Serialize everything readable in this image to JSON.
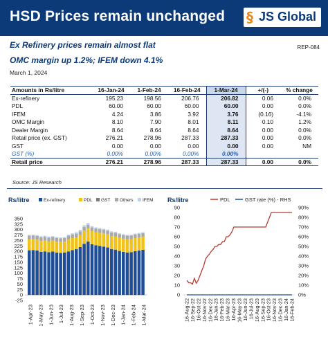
{
  "header": {
    "title": "HSD Prices remain unchanged",
    "logo_text": "JS Global",
    "logo_mark": "§"
  },
  "subtitle1": "Ex Refinery prices remain almost flat",
  "report_id": "REP-084",
  "subtitle2": "OMC margin up 1.2%; IFEM down 4.1%",
  "date": "March 1, 2024",
  "table": {
    "headers": [
      "Amounts in Rs/litre",
      "16-Jan-24",
      "1-Feb-24",
      "16-Feb-24",
      "1-Mar-24",
      "+/(-)",
      "% change"
    ],
    "rows": [
      [
        "Ex-refinery",
        "195.23",
        "198.56",
        "206.76",
        "206.82",
        "0.06",
        "0.0%"
      ],
      [
        "PDL",
        "60.00",
        "60.00",
        "60.00",
        "60.00",
        "0.00",
        "0.0%"
      ],
      [
        "IFEM",
        "4.24",
        "3.86",
        "3.92",
        "3.76",
        "(0.16)",
        "-4.1%"
      ],
      [
        "OMC Margin",
        "8.10",
        "7.90",
        "8.01",
        "8.11",
        "0.10",
        "1.2%"
      ],
      [
        "Dealer Margin",
        "8.64",
        "8.64",
        "8.64",
        "8.64",
        "0.00",
        "0.0%"
      ],
      [
        "Retail price (ex. GST)",
        "276.21",
        "278.96",
        "287.33",
        "287.33",
        "0.00",
        "0.0%"
      ],
      [
        "GST",
        "0.00",
        "0.00",
        "0.00",
        "0.00",
        "0.00",
        "NM"
      ]
    ],
    "gst_row": [
      "GST (%)",
      "0.00%",
      "0.00%",
      "0.00%",
      "0.00%",
      "",
      ""
    ],
    "total_row": [
      "Retail price",
      "276.21",
      "278.96",
      "287.33",
      "287.33",
      "0.00",
      "0.0%"
    ]
  },
  "source": "Source: JS Research",
  "colors": {
    "navy": "#0c3a78",
    "ex_refinery": "#1f4e96",
    "pdl": "#f2c21c",
    "gst": "#7a7a7a",
    "others": "#a9a9a9",
    "ifem": "#bcd2ea",
    "pdl_line": "#b83a2e",
    "gst_line": "#1f4e96"
  },
  "chart_data": [
    {
      "type": "bar",
      "stacked": true,
      "ylabel": "Rs/litre",
      "ylim": [
        -25,
        350
      ],
      "yticks": [
        -25,
        0,
        25,
        50,
        75,
        100,
        125,
        150,
        175,
        200,
        225,
        250,
        275,
        300,
        325,
        350
      ],
      "xtick_labels": [
        "1-Apr-23",
        "1-May-23",
        "1-Jun-23",
        "1-Jul-23",
        "1-Aug-23",
        "1-Sep-23",
        "1-Oct-23",
        "1-Nov-23",
        "1-Dec-23",
        "1-Jan-24",
        "1-Feb-24",
        "1-Mar-24"
      ],
      "legend": [
        "Ex-refinery",
        "PDL",
        "GST",
        "Others",
        "IFEM"
      ],
      "legend_position": "top",
      "grid": false,
      "series": [
        {
          "name": "Ex-refinery",
          "values": [
            205,
            206,
            204,
            198,
            200,
            196,
            199,
            195,
            193,
            195,
            200,
            206,
            210,
            220,
            235,
            245,
            233,
            228,
            225,
            222,
            218,
            210,
            208,
            202,
            198,
            195,
            196,
            201,
            204,
            207
          ]
        },
        {
          "name": "PDL",
          "values": [
            50,
            50,
            50,
            50,
            50,
            50,
            50,
            50,
            50,
            50,
            55,
            55,
            55,
            55,
            60,
            60,
            60,
            60,
            60,
            60,
            60,
            60,
            60,
            60,
            60,
            60,
            60,
            60,
            60,
            60
          ]
        },
        {
          "name": "GST",
          "values": [
            0,
            0,
            0,
            0,
            0,
            0,
            0,
            0,
            0,
            0,
            0,
            0,
            0,
            0,
            0,
            0,
            0,
            0,
            0,
            0,
            0,
            0,
            0,
            0,
            0,
            0,
            0,
            0,
            0,
            0
          ]
        },
        {
          "name": "Others",
          "values": [
            17,
            17,
            17,
            17,
            17,
            17,
            17,
            17,
            17,
            17,
            17,
            17,
            17,
            17,
            17,
            17,
            17,
            17,
            17,
            17,
            17,
            17,
            17,
            17,
            17,
            17,
            17,
            17,
            17,
            17
          ]
        },
        {
          "name": "IFEM",
          "values": [
            4,
            4,
            4,
            5,
            5,
            5,
            4,
            4,
            4,
            4,
            5,
            5,
            6,
            7,
            8,
            8,
            6,
            5,
            5,
            5,
            5,
            5,
            5,
            4,
            4,
            4,
            4,
            4,
            4,
            4
          ]
        }
      ]
    },
    {
      "type": "line",
      "ylabel": "Rs/litre",
      "ylim": [
        0,
        90
      ],
      "yticks": [
        0,
        10,
        20,
        30,
        40,
        50,
        60,
        70,
        80,
        90
      ],
      "y2lim": [
        0,
        0.9
      ],
      "y2ticks": [
        "0%",
        "10%",
        "20%",
        "30%",
        "40%",
        "50%",
        "60%",
        "70%",
        "80%",
        "90%"
      ],
      "xtick_labels": [
        "16-Aug-22",
        "16-Sep-22",
        "16-Oct-22",
        "16-Nov-22",
        "16-Dec-22",
        "16-Jan-23",
        "16-Feb-23",
        "16-Mar-23",
        "16-Apr-23",
        "16-May-23",
        "16-Jun-23",
        "16-Jul-23",
        "16-Aug-23",
        "16-Sep-23",
        "16-Oct-23",
        "16-Nov-23",
        "16-Dec-23",
        "16-Jan-24",
        "16-Feb-24"
      ],
      "legend": [
        "PDL",
        "GST rate (%) - RHS"
      ],
      "legend_position": "top",
      "series": [
        {
          "name": "PDL",
          "values": [
            15,
            12.5,
            12.5,
            11,
            17,
            12,
            15,
            20,
            25,
            30,
            37,
            40,
            42,
            45,
            47,
            50,
            50,
            52,
            52,
            55,
            55,
            60,
            60,
            62,
            65,
            70,
            70,
            70,
            70,
            70,
            70,
            70,
            70,
            70,
            70,
            70,
            70,
            70,
            70,
            70,
            70,
            70,
            70,
            75,
            80,
            85,
            85,
            85,
            85,
            85,
            85,
            85,
            85,
            85,
            85,
            85,
            85
          ]
        },
        {
          "name": "GST rate (%) - RHS",
          "values": [
            0,
            0,
            0,
            0,
            0,
            0,
            0,
            0,
            0,
            0,
            0,
            0,
            0,
            0,
            0,
            0,
            0,
            0,
            0,
            0,
            0,
            0,
            0,
            0,
            0,
            0,
            0,
            0,
            0,
            0,
            0,
            0,
            0,
            0,
            0,
            0,
            0,
            0,
            0,
            0,
            0,
            0,
            0,
            0,
            0,
            0,
            0,
            0,
            0,
            0,
            0,
            0,
            0,
            0,
            0,
            0,
            0
          ]
        }
      ]
    }
  ]
}
